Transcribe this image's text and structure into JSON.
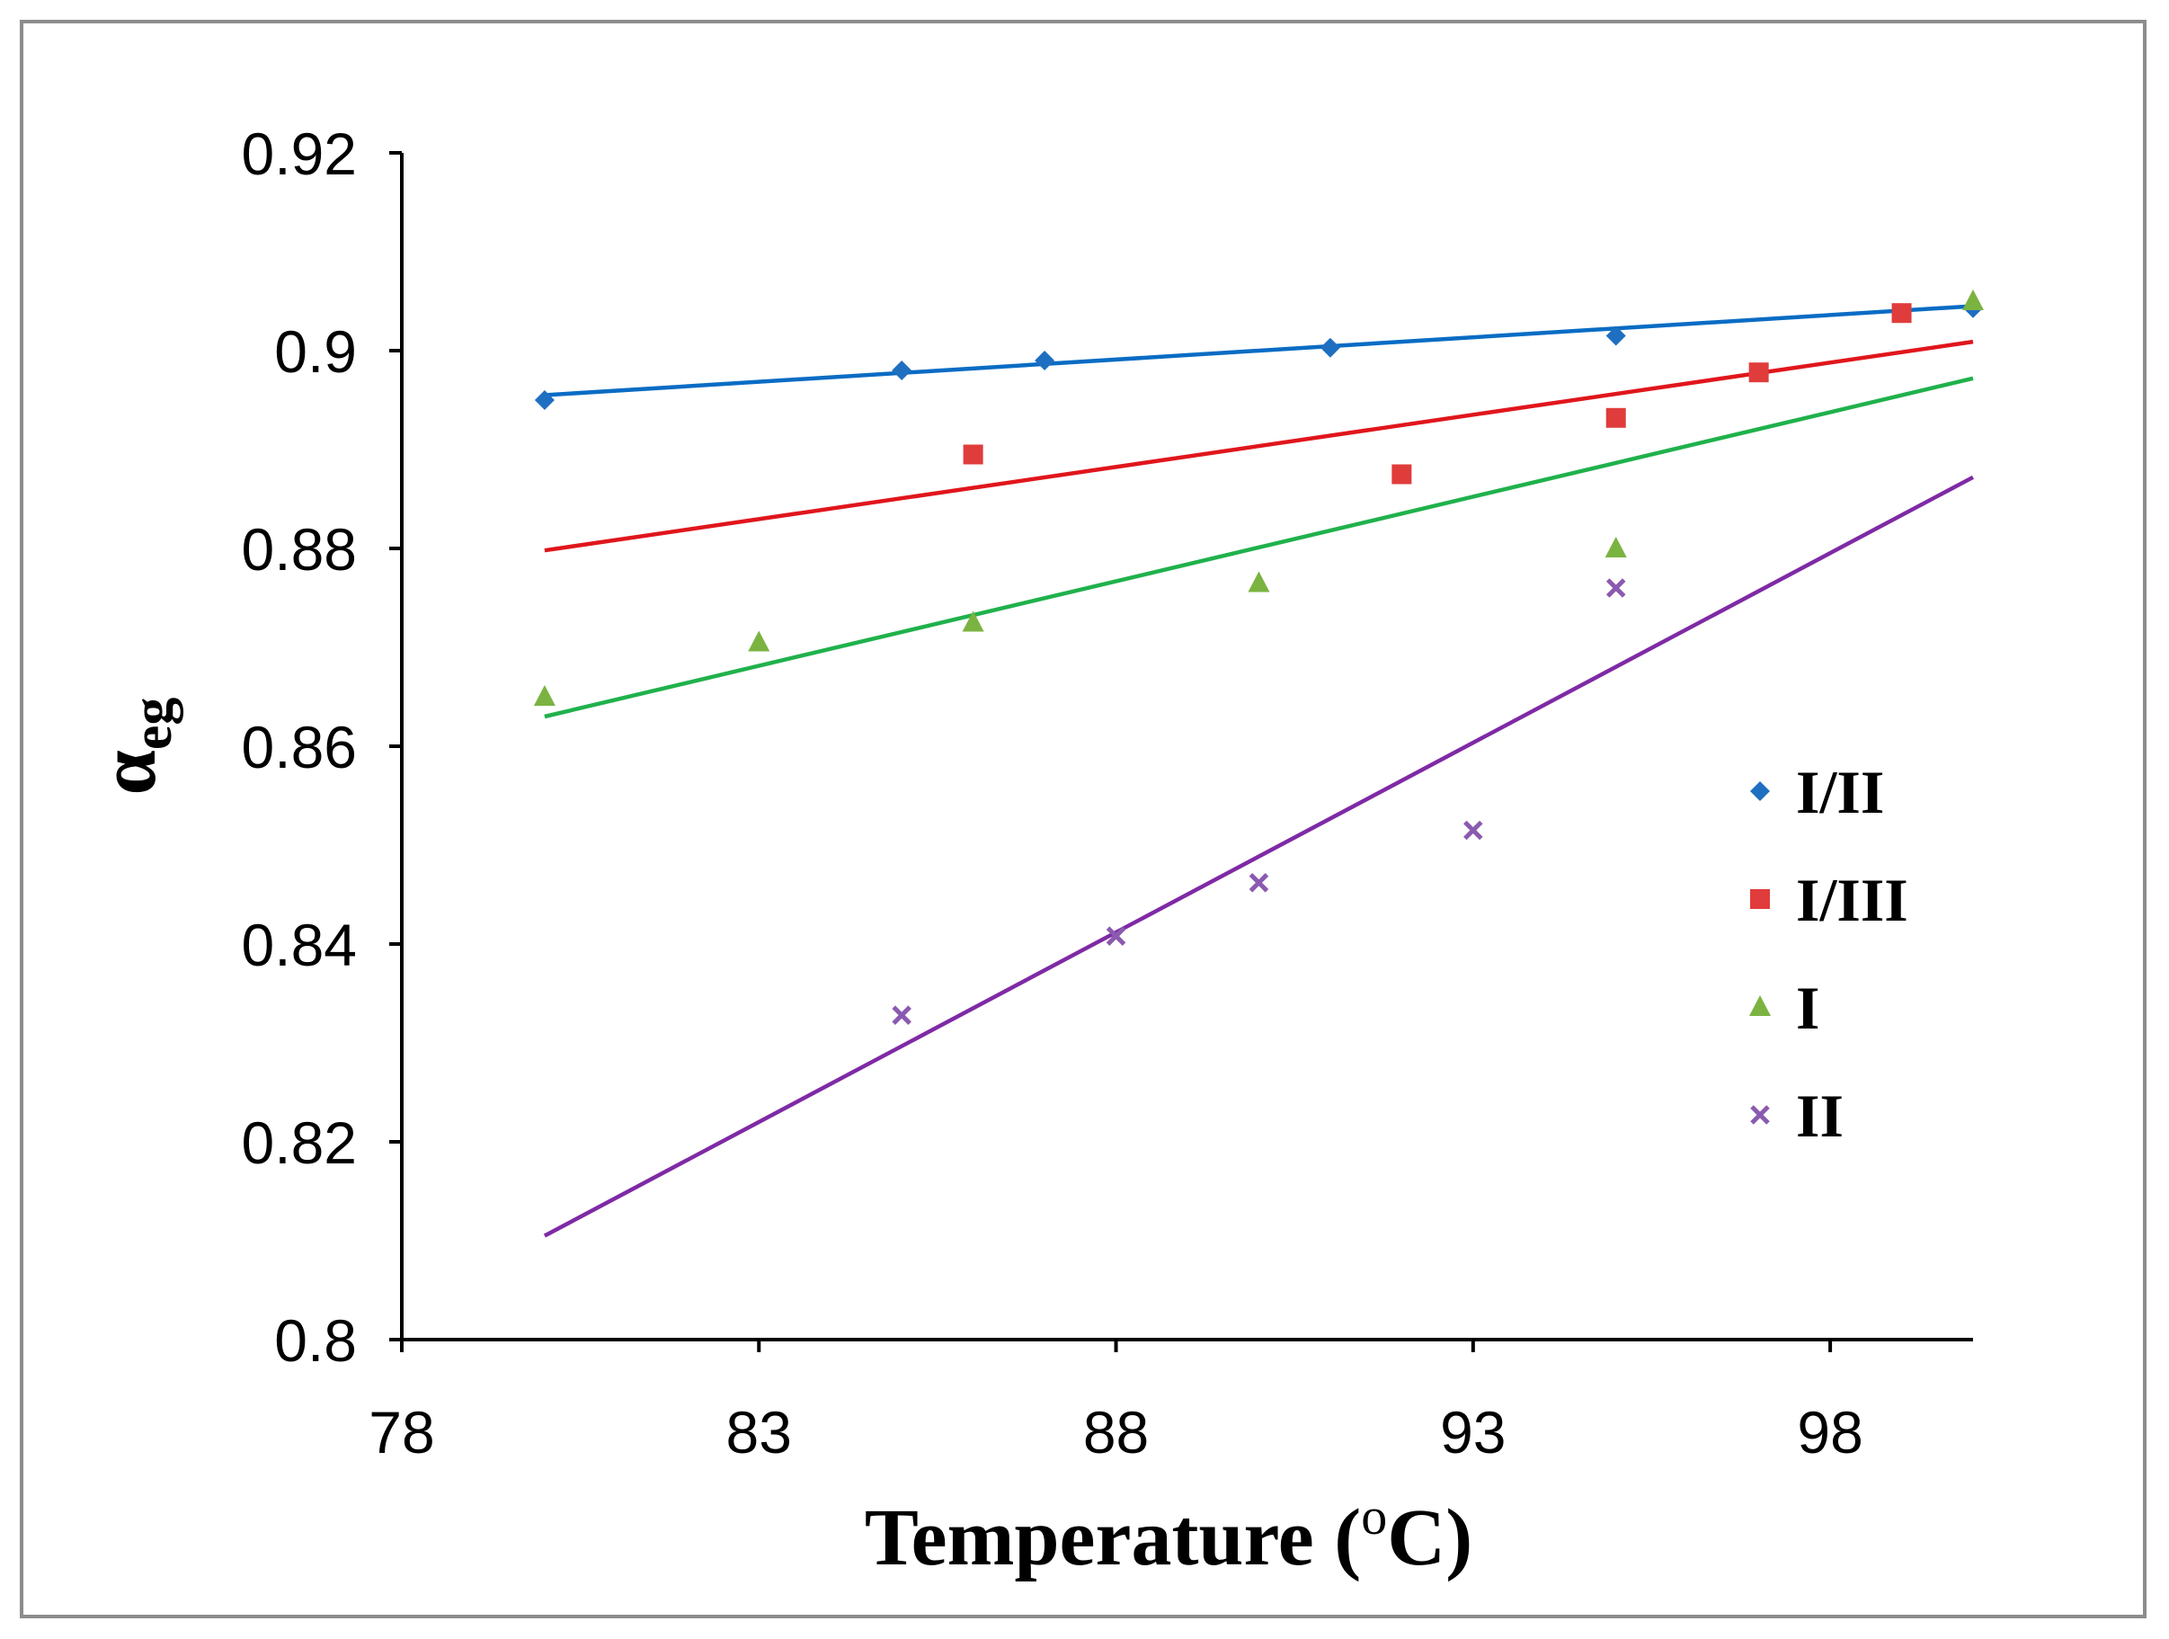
{
  "chart_data": {
    "type": "scatter",
    "title": "",
    "xlabel": "Temperature (oC)",
    "xlabel_main": "Temperature (",
    "xlabel_sup": "o",
    "xlabel_end": "C)",
    "ylabel_main": "α",
    "ylabel_sub": "eg",
    "xlim": [
      78,
      100
    ],
    "ylim": [
      0.8,
      0.92
    ],
    "x_ticks": [
      78,
      83,
      88,
      93,
      98
    ],
    "y_ticks": [
      0.8,
      0.82,
      0.84,
      0.86,
      0.88,
      0.9,
      0.92
    ],
    "x_tick_labels": [
      "78",
      "83",
      "88",
      "93",
      "98"
    ],
    "y_tick_labels": [
      "0.8",
      "0.82",
      "0.84",
      "0.86",
      "0.88",
      "0.9",
      "0.92"
    ],
    "grid": false,
    "legend_position": "right",
    "series": [
      {
        "name": "I/II",
        "color": "#1f6fc1",
        "marker": "diamond",
        "x": [
          80,
          85,
          87,
          91,
          95,
          100
        ],
        "y": [
          0.895,
          0.898,
          0.899,
          0.9003,
          0.9015,
          0.9043
        ],
        "trendline": {
          "x": [
            80,
            100
          ],
          "y": [
            0.8955,
            0.9045
          ]
        }
      },
      {
        "name": "I/III",
        "color": "#e03c3c",
        "marker": "square",
        "x": [
          86,
          92,
          95,
          97,
          99
        ],
        "y": [
          0.8895,
          0.8875,
          0.8932,
          0.8978,
          0.9038
        ],
        "trendline": {
          "x": [
            80,
            100
          ],
          "y": [
            0.8798,
            0.9009
          ]
        }
      },
      {
        "name": "I",
        "color": "#7bb341",
        "marker": "triangle",
        "x": [
          80,
          83,
          86,
          90,
          95,
          100
        ],
        "y": [
          0.865,
          0.8705,
          0.8725,
          0.8765,
          0.88,
          0.905
        ],
        "trendline": {
          "x": [
            80,
            100
          ],
          "y": [
            0.863,
            0.8972
          ]
        }
      },
      {
        "name": "II",
        "color": "#8a5ab0",
        "marker": "cross",
        "x": [
          85,
          88,
          90,
          93,
          95
        ],
        "y": [
          0.8328,
          0.8408,
          0.8462,
          0.8515,
          0.876
        ],
        "trendline": {
          "x": [
            80,
            100
          ],
          "y": [
            0.8105,
            0.8872
          ]
        }
      }
    ],
    "trendline_colors": [
      "#0a6cc4",
      "#e0161c",
      "#20b14c",
      "#7f2aa5"
    ]
  }
}
